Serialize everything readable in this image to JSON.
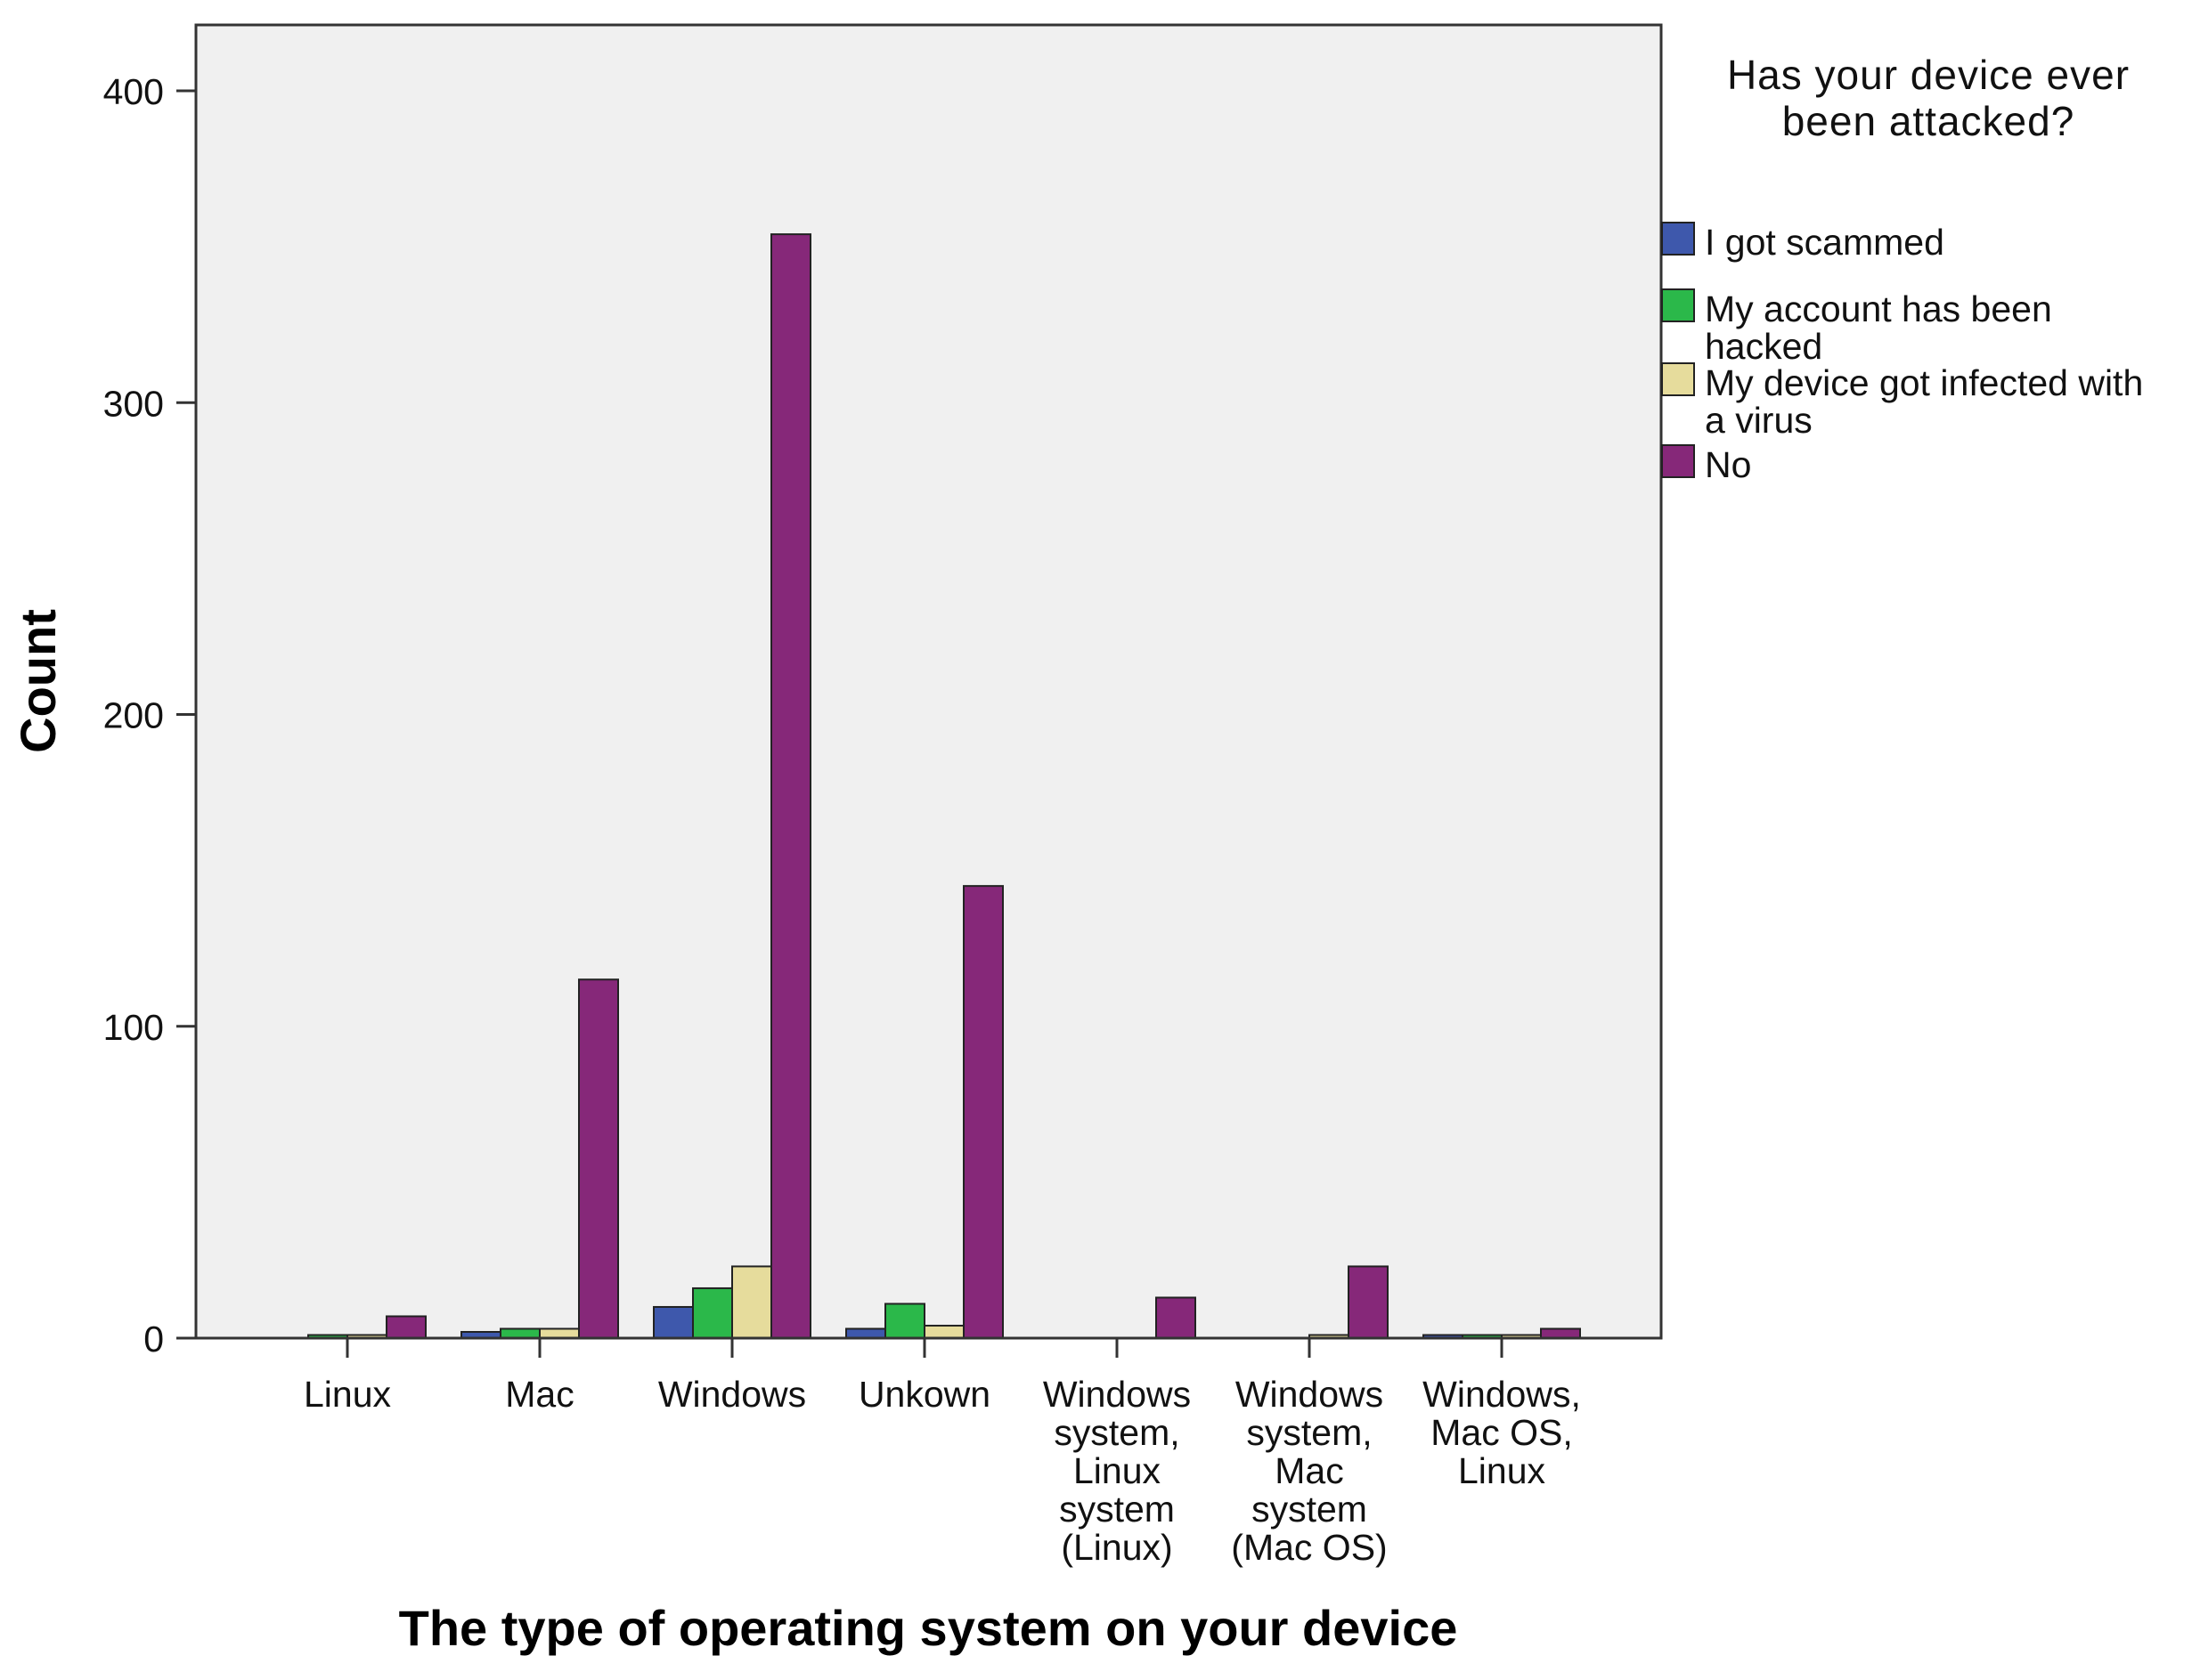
{
  "chart_data": {
    "type": "bar",
    "xlabel": "The type of operating system on your device",
    "ylabel": "Count",
    "ylim": [
      0,
      400
    ],
    "yticks": [
      0,
      100,
      200,
      300,
      400
    ],
    "grid": false,
    "legend_placement": "right",
    "legend_title": [
      "Has your device ever",
      "been attacked?"
    ],
    "categories": [
      [
        "Linux"
      ],
      [
        "Mac"
      ],
      [
        "Windows"
      ],
      [
        "Unkown"
      ],
      [
        "Windows",
        "system,",
        "Linux",
        "system",
        "(Linux)"
      ],
      [
        "Windows",
        "system,",
        "Mac",
        "system",
        "(Mac OS)"
      ],
      [
        "Windows,",
        "Mac OS,",
        "Linux"
      ]
    ],
    "series": [
      {
        "name": [
          "I got scammed"
        ],
        "color": "#3E58AC",
        "values": [
          0,
          2,
          10,
          3,
          0,
          0,
          1
        ]
      },
      {
        "name": [
          "My account has been",
          "hacked"
        ],
        "color": "#2BB84A",
        "values": [
          1,
          3,
          16,
          11,
          0,
          0,
          1
        ]
      },
      {
        "name": [
          "My device got infected with",
          "a virus"
        ],
        "color": "#E6DC9C",
        "values": [
          1,
          3,
          23,
          4,
          0,
          1,
          1
        ]
      },
      {
        "name": [
          "No"
        ],
        "color": "#862879",
        "values": [
          7,
          115,
          354,
          145,
          13,
          23,
          3
        ]
      }
    ]
  }
}
